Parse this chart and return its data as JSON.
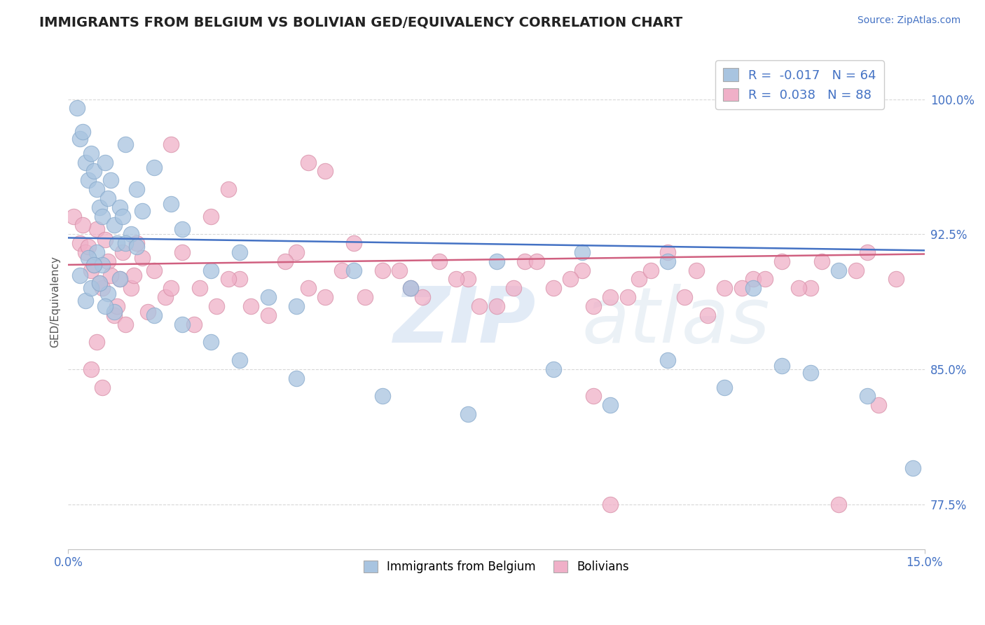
{
  "title": "IMMIGRANTS FROM BELGIUM VS BOLIVIAN GED/EQUIVALENCY CORRELATION CHART",
  "source_text": "Source: ZipAtlas.com",
  "ylabel": "GED/Equivalency",
  "xlim": [
    0.0,
    15.0
  ],
  "ylim": [
    75.0,
    102.5
  ],
  "xticks": [
    0.0,
    15.0
  ],
  "xticklabels": [
    "0.0%",
    "15.0%"
  ],
  "yticks": [
    77.5,
    85.0,
    92.5,
    100.0
  ],
  "yticklabels": [
    "77.5%",
    "85.0%",
    "92.5%",
    "100.0%"
  ],
  "blue_R": -0.017,
  "blue_N": 64,
  "pink_R": 0.038,
  "pink_N": 88,
  "blue_color": "#a8c4e0",
  "pink_color": "#f0b0c8",
  "blue_edge_color": "#88aacc",
  "pink_edge_color": "#d890a8",
  "blue_line_color": "#4472c4",
  "pink_line_color": "#d06080",
  "blue_label": "Immigrants from Belgium",
  "pink_label": "Bolivians",
  "watermark": "ZIPatlas",
  "background_color": "#ffffff",
  "grid_color": "#d8d8d8",
  "blue_line_y0": 92.3,
  "blue_line_y1": 91.6,
  "pink_line_y0": 90.8,
  "pink_line_y1": 91.4,
  "blue_scatter_x": [
    0.15,
    0.2,
    0.25,
    0.3,
    0.35,
    0.4,
    0.45,
    0.5,
    0.55,
    0.6,
    0.65,
    0.7,
    0.75,
    0.8,
    0.85,
    0.9,
    0.95,
    1.0,
    1.1,
    1.2,
    1.3,
    1.5,
    1.8,
    2.0,
    2.5,
    3.0,
    3.5,
    4.0,
    5.0,
    6.0,
    7.5,
    9.0,
    10.5,
    12.0,
    13.5,
    0.2,
    0.3,
    0.4,
    0.5,
    0.6,
    0.7,
    0.8,
    0.9,
    1.0,
    1.2,
    1.5,
    2.0,
    2.5,
    3.0,
    4.0,
    5.5,
    7.0,
    8.5,
    9.5,
    10.5,
    11.5,
    12.5,
    13.0,
    14.0,
    14.8,
    0.35,
    0.45,
    0.55,
    0.65
  ],
  "blue_scatter_y": [
    99.5,
    97.8,
    98.2,
    96.5,
    95.5,
    97.0,
    96.0,
    95.0,
    94.0,
    93.5,
    96.5,
    94.5,
    95.5,
    93.0,
    92.0,
    94.0,
    93.5,
    97.5,
    92.5,
    95.0,
    93.8,
    96.2,
    94.2,
    92.8,
    90.5,
    91.5,
    89.0,
    88.5,
    90.5,
    89.5,
    91.0,
    91.5,
    91.0,
    89.5,
    90.5,
    90.2,
    88.8,
    89.5,
    91.5,
    90.8,
    89.2,
    88.2,
    90.0,
    92.0,
    91.8,
    88.0,
    87.5,
    86.5,
    85.5,
    84.5,
    83.5,
    82.5,
    85.0,
    83.0,
    85.5,
    84.0,
    85.2,
    84.8,
    83.5,
    79.5,
    91.2,
    90.8,
    89.8,
    88.5
  ],
  "pink_scatter_x": [
    0.1,
    0.2,
    0.3,
    0.4,
    0.5,
    0.6,
    0.7,
    0.8,
    0.9,
    1.0,
    1.1,
    1.2,
    1.3,
    1.5,
    1.7,
    2.0,
    2.3,
    2.6,
    3.0,
    3.5,
    4.0,
    4.5,
    5.0,
    5.5,
    6.0,
    6.5,
    7.0,
    7.5,
    8.0,
    8.5,
    9.0,
    9.5,
    10.0,
    10.5,
    11.0,
    11.5,
    12.0,
    12.5,
    13.0,
    13.5,
    14.0,
    14.5,
    0.25,
    0.35,
    0.45,
    0.55,
    0.65,
    0.75,
    0.85,
    0.95,
    1.15,
    1.4,
    1.8,
    2.2,
    2.8,
    3.2,
    3.8,
    4.2,
    4.8,
    5.2,
    5.8,
    6.2,
    6.8,
    7.2,
    7.8,
    8.2,
    8.8,
    9.2,
    9.8,
    10.2,
    10.8,
    11.2,
    11.8,
    12.2,
    12.8,
    13.2,
    13.8,
    4.5,
    9.2,
    9.5,
    14.2,
    2.8,
    4.2,
    1.8,
    2.5,
    0.6,
    0.4,
    0.5
  ],
  "pink_scatter_y": [
    93.5,
    92.0,
    91.5,
    90.5,
    92.8,
    89.5,
    91.0,
    88.0,
    90.0,
    87.5,
    89.5,
    92.0,
    91.2,
    90.5,
    89.0,
    91.5,
    89.5,
    88.5,
    90.0,
    88.0,
    91.5,
    89.0,
    92.0,
    90.5,
    89.5,
    91.0,
    90.0,
    88.5,
    91.0,
    89.5,
    90.5,
    89.0,
    90.0,
    91.5,
    90.5,
    89.5,
    90.0,
    91.0,
    89.5,
    77.5,
    91.5,
    90.0,
    93.0,
    91.8,
    90.8,
    89.8,
    92.2,
    90.2,
    88.5,
    91.5,
    90.2,
    88.2,
    89.5,
    87.5,
    90.0,
    88.5,
    91.0,
    89.5,
    90.5,
    89.0,
    90.5,
    89.0,
    90.0,
    88.5,
    89.5,
    91.0,
    90.0,
    88.5,
    89.0,
    90.5,
    89.0,
    88.0,
    89.5,
    90.0,
    89.5,
    91.0,
    90.5,
    96.0,
    83.5,
    77.5,
    83.0,
    95.0,
    96.5,
    97.5,
    93.5,
    84.0,
    85.0,
    86.5
  ]
}
